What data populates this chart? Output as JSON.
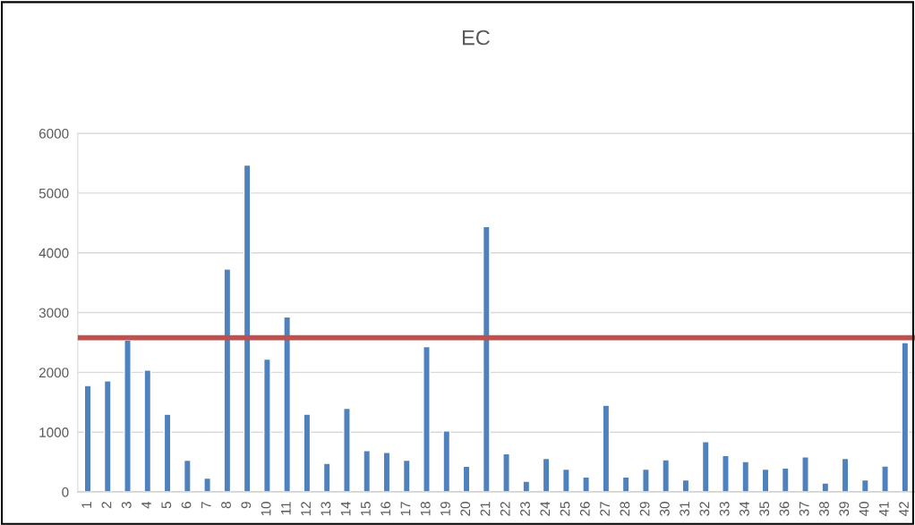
{
  "chart_data": {
    "type": "bar",
    "title": "EC",
    "categories": [
      "1",
      "2",
      "3",
      "4",
      "5",
      "6",
      "7",
      "8",
      "9",
      "10",
      "11",
      "12",
      "13",
      "14",
      "15",
      "16",
      "17",
      "18",
      "19",
      "20",
      "21",
      "22",
      "23",
      "24",
      "25",
      "26",
      "27",
      "28",
      "29",
      "30",
      "31",
      "32",
      "33",
      "34",
      "35",
      "36",
      "37",
      "38",
      "39",
      "40",
      "41",
      "42"
    ],
    "values": [
      1780,
      1860,
      2540,
      2040,
      1300,
      530,
      230,
      3730,
      5470,
      2220,
      2930,
      1300,
      480,
      1400,
      690,
      660,
      530,
      2430,
      1020,
      430,
      4440,
      640,
      180,
      560,
      380,
      250,
      1450,
      250,
      380,
      540,
      200,
      840,
      610,
      510,
      380,
      400,
      585,
      150,
      560,
      200,
      435,
      2500
    ],
    "color": "#4f81bd",
    "ylim": [
      0,
      6000
    ],
    "yticks": [
      0,
      1000,
      2000,
      3000,
      4000,
      5000,
      6000
    ],
    "grid": "y",
    "ref_lines": [
      {
        "axis": "y",
        "value": 2580,
        "color": "#c0504d"
      }
    ]
  }
}
